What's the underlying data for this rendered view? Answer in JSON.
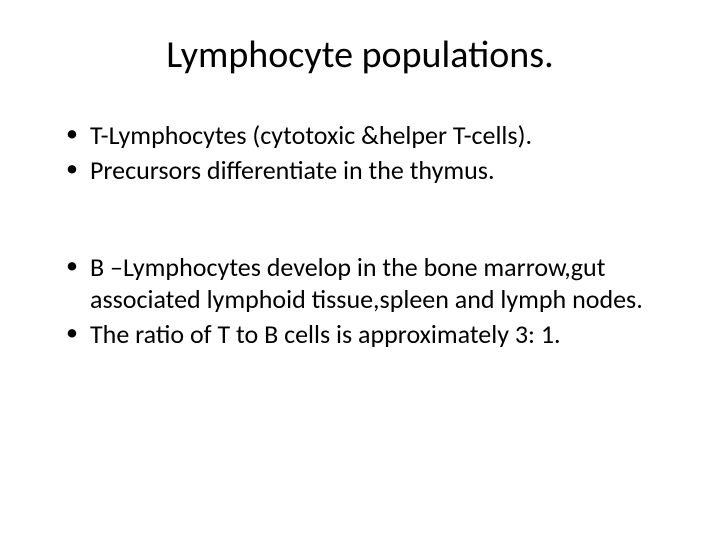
{
  "slide": {
    "title": "Lymphocyte populations.",
    "bullets_group1": [
      "T-Lymphocytes (cytotoxic &helper T-cells).",
      "Precursors differentiate in the thymus."
    ],
    "bullets_group2": [
      "B –Lymphocytes develop in the bone marrow,gut associated lymphoid tissue,spleen and lymph nodes.",
      "The ratio of T to B cells is approximately 3: 1."
    ],
    "colors": {
      "background": "#ffffff",
      "text": "#000000"
    },
    "typography": {
      "title_fontsize": 38,
      "body_fontsize": 26,
      "font_family": "Calibri"
    }
  }
}
